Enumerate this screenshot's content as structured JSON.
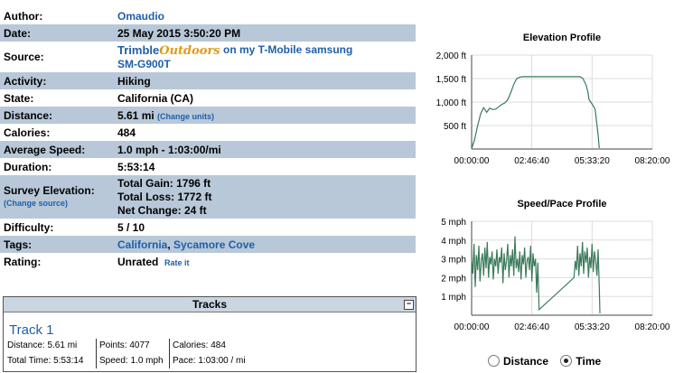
{
  "info": {
    "author": {
      "label": "Author:",
      "value": "Omaudio"
    },
    "date": {
      "label": "Date:",
      "value": "25 May 2015 3:50:20 PM"
    },
    "source": {
      "label": "Source:",
      "brand1": "Trimble",
      "brand2": "Outdoors",
      "value": "on my T-Mobile samsung",
      "value2": "SM-G900T"
    },
    "activity": {
      "label": "Activity:",
      "value": "Hiking"
    },
    "state": {
      "label": "State:",
      "value": "California (CA)"
    },
    "distance": {
      "label": "Distance:",
      "value": "5.61 mi",
      "link": "(Change units)"
    },
    "calories": {
      "label": "Calories:",
      "value": "484"
    },
    "avg_speed": {
      "label": "Average Speed:",
      "value": "1.0 mph - 1:03:00/mi"
    },
    "duration": {
      "label": "Duration:",
      "value": "5:53:14"
    },
    "survey": {
      "label": "Survey Elevation:",
      "link": "(Change source)",
      "gain": "Total Gain: 1796 ft",
      "loss": "Total Loss: 1772 ft",
      "net": "Net Change: 24 ft"
    },
    "difficulty": {
      "label": "Difficulty:",
      "value": "5 / 10"
    },
    "tags": {
      "label": "Tags:",
      "tag1": "California",
      "sep": ", ",
      "tag2": "Sycamore Cove"
    },
    "rating": {
      "label": "Rating:",
      "value": "Unrated",
      "link": "Rate it"
    }
  },
  "tracks": {
    "header": "Tracks",
    "collapse": "−",
    "name": "Track 1",
    "distance": "Distance: 5.61 mi",
    "points": "Points: 4077",
    "calories": "Calories: 484",
    "total_time": "Total Time: 5:53:14",
    "speed": "Speed: 1.0 mph",
    "pace": "Pace: 1:03:00 / mi"
  },
  "radios": {
    "distance": "Distance",
    "time": "Time",
    "selected": "time"
  },
  "chart_data": [
    {
      "type": "line",
      "title": "Elevation Profile",
      "y_ticks": [
        "2,000 ft",
        "1,500 ft",
        "1,000 ft",
        "500 ft"
      ],
      "x_ticks": [
        "00:00:00",
        "02:46:40",
        "05:33:20",
        "08:20:00"
      ],
      "ylim": [
        0,
        2000
      ],
      "xlim": [
        0,
        30000
      ],
      "color": "#3a7a5a",
      "x": [
        0,
        500,
        1000,
        1500,
        2000,
        2500,
        3000,
        3500,
        4000,
        4500,
        5000,
        5500,
        6000,
        6500,
        7000,
        7500,
        8000,
        8500,
        9000,
        9500,
        12000,
        15000,
        18000,
        18500,
        19000,
        19300,
        19500,
        20000,
        20500,
        21000,
        21200
      ],
      "y": [
        10,
        200,
        500,
        750,
        880,
        780,
        870,
        840,
        850,
        900,
        950,
        980,
        1050,
        1200,
        1380,
        1500,
        1530,
        1540,
        1540,
        1540,
        1540,
        1540,
        1540,
        1500,
        1360,
        1220,
        1050,
        960,
        850,
        300,
        20
      ]
    },
    {
      "type": "line",
      "title": "Speed/Pace Profile",
      "y_ticks": [
        "5 mph",
        "4 mph",
        "3 mph",
        "2 mph",
        "1 mph"
      ],
      "x_ticks": [
        "00:00:00",
        "02:46:40",
        "05:33:20",
        "08:20:00"
      ],
      "ylim": [
        0,
        5
      ],
      "xlim": [
        0,
        30000
      ],
      "color": "#3a7a5a",
      "x": [
        0,
        200,
        400,
        600,
        800,
        1000,
        1200,
        1400,
        1600,
        1800,
        2000,
        2200,
        2400,
        2600,
        2800,
        3000,
        3200,
        3400,
        3600,
        3800,
        4000,
        4200,
        4400,
        4600,
        4800,
        5000,
        5200,
        5400,
        5600,
        5800,
        6000,
        6200,
        6400,
        6600,
        6800,
        7000,
        7200,
        7400,
        7600,
        7800,
        8000,
        8200,
        8400,
        8600,
        8800,
        9000,
        9200,
        9400,
        9600,
        9800,
        10000,
        10200,
        10400,
        10600,
        10800,
        11000,
        11200,
        17000,
        17200,
        17400,
        17600,
        17800,
        18000,
        18200,
        18400,
        18600,
        18800,
        19000,
        19200,
        19400,
        19600,
        19800,
        20000,
        20200,
        20400,
        20600,
        20800,
        21000,
        21200,
        21300
      ],
      "y": [
        3.0,
        2.2,
        3.8,
        1.5,
        3.2,
        2.4,
        3.7,
        1.8,
        2.9,
        3.3,
        2.1,
        3.6,
        2.5,
        3.9,
        2.0,
        3.1,
        2.7,
        3.4,
        1.9,
        3.0,
        2.6,
        3.5,
        2.2,
        3.1,
        2.8,
        3.6,
        1.7,
        3.3,
        2.4,
        2.9,
        3.8,
        2.0,
        3.2,
        2.6,
        3.5,
        2.1,
        4.2,
        2.5,
        3.0,
        2.3,
        3.4,
        1.9,
        3.2,
        2.7,
        3.6,
        2.0,
        2.9,
        3.1,
        2.4,
        3.7,
        1.8,
        3.3,
        2.6,
        3.0,
        1.2,
        2.8,
        0.3,
        2.0,
        2.9,
        2.4,
        3.7,
        2.1,
        3.3,
        2.6,
        3.9,
        2.2,
        3.4,
        2.8,
        3.6,
        2.0,
        3.1,
        2.5,
        3.8,
        2.3,
        3.4,
        2.9,
        2.1,
        3.5,
        1.5,
        0.1
      ]
    }
  ]
}
